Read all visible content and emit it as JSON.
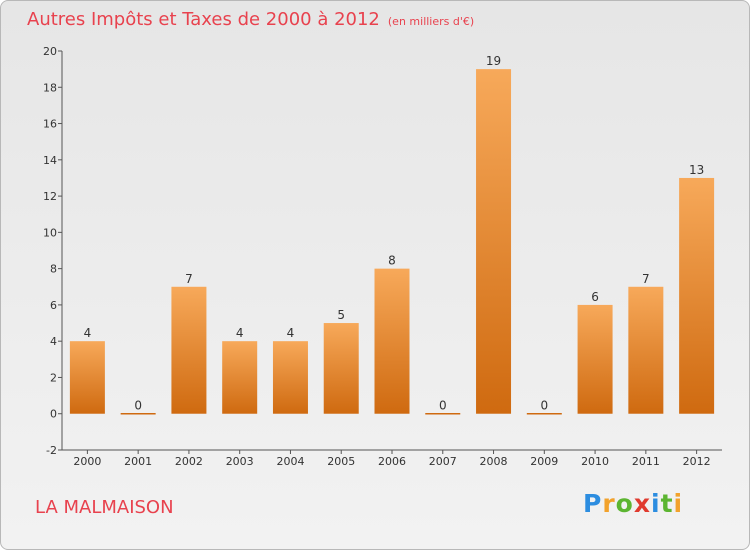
{
  "header": {
    "title": "Autres Impôts et Taxes de 2000 à 2012",
    "unit": "(en milliers d'€)"
  },
  "commune": "LA MALMAISON",
  "logo": {
    "text": "Proxiti",
    "letters": [
      "P",
      "r",
      "o",
      "x",
      "i",
      "t",
      "i"
    ],
    "colors": [
      "#2c8de0",
      "#f2a22c",
      "#5cb531",
      "#e03a2e",
      "#2c8de0",
      "#5cb531",
      "#f2a22c"
    ]
  },
  "chart_data": {
    "type": "bar",
    "title": "Autres Impôts et Taxes de 2000 à 2012",
    "subtitle": "(en milliers d'€)",
    "categories": [
      "2000",
      "2001",
      "2002",
      "2003",
      "2004",
      "2005",
      "2006",
      "2007",
      "2008",
      "2009",
      "2010",
      "2011",
      "2012"
    ],
    "values": [
      4,
      0,
      7,
      4,
      4,
      5,
      8,
      0,
      19,
      0,
      6,
      7,
      13
    ],
    "data_labels": [
      "4",
      "0",
      "7",
      "4",
      "4",
      "5",
      "8",
      "0",
      "19",
      "0",
      "6",
      "7",
      "13"
    ],
    "ylim": [
      -2,
      20
    ],
    "yticks": [
      -2,
      0,
      2,
      4,
      6,
      8,
      10,
      12,
      14,
      16,
      18,
      20
    ],
    "ytick_labels": [
      "-2",
      "0",
      "2",
      "4",
      "6",
      "8",
      "10",
      "12",
      "14",
      "16",
      "18",
      "20"
    ],
    "grid": false,
    "colors": {
      "bar_top": "#f7a95a",
      "bar_bottom": "#cf6a10",
      "axis": "#555555",
      "tick_text": "#333333"
    }
  }
}
